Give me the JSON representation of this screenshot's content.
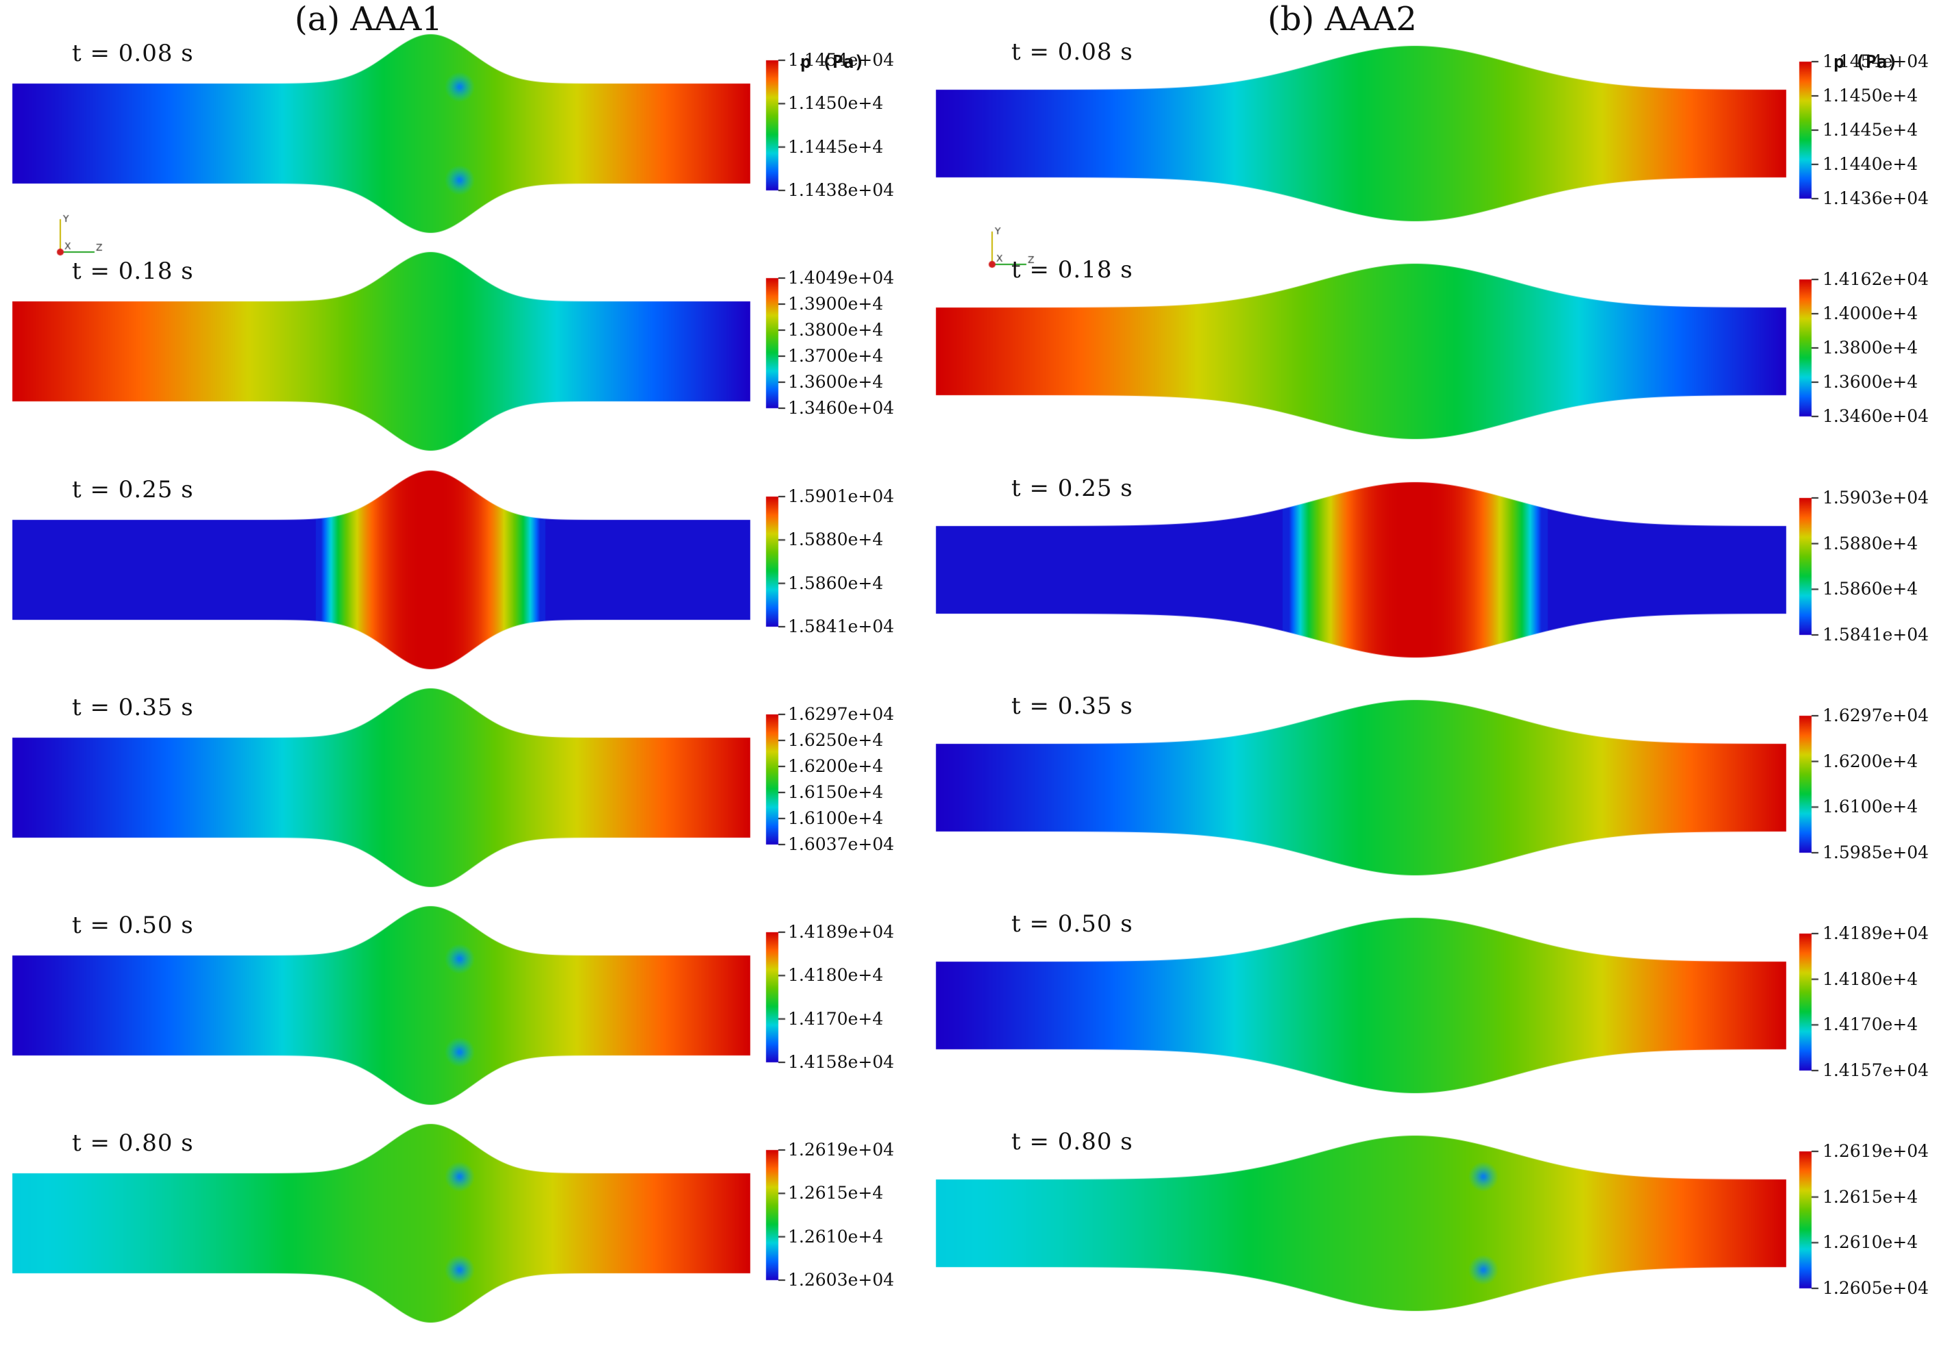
{
  "panels": [
    {
      "title": "(a) AAA1",
      "colorbar_title": "p (Pa)",
      "rows": [
        {
          "time": "t = 0.08 s",
          "ticks": [
            "1.1454e+04",
            "1.1450e+4",
            "1.1445e+4",
            "1.1438e+04"
          ],
          "field": "inlet-low",
          "vortices": true
        },
        {
          "time": "t = 0.18 s",
          "ticks": [
            "1.4049e+04",
            "1.3900e+4",
            "1.3800e+4",
            "1.3700e+4",
            "1.3600e+4",
            "1.3460e+04"
          ],
          "field": "inlet-high",
          "vortices": false
        },
        {
          "time": "t = 0.25 s",
          "ticks": [
            "1.5901e+04",
            "1.5880e+4",
            "1.5860e+4",
            "1.5841e+04"
          ],
          "field": "sac-high",
          "vortices": false
        },
        {
          "time": "t = 0.35 s",
          "ticks": [
            "1.6297e+04",
            "1.6250e+4",
            "1.6200e+4",
            "1.6150e+4",
            "1.6100e+4",
            "1.6037e+04"
          ],
          "field": "inlet-low",
          "vortices": false
        },
        {
          "time": "t = 0.50 s",
          "ticks": [
            "1.4189e+04",
            "1.4180e+4",
            "1.4170e+4",
            "1.4158e+04"
          ],
          "field": "inlet-low",
          "vortices": true
        },
        {
          "time": "t = 0.80 s",
          "ticks": [
            "1.2619e+04",
            "1.2615e+4",
            "1.2610e+4",
            "1.2603e+04"
          ],
          "field": "inlet-mid",
          "vortices": true
        }
      ]
    },
    {
      "title": "(b) AAA2",
      "colorbar_title": "p (Pa)",
      "rows": [
        {
          "time": "t = 0.08 s",
          "ticks": [
            "1.1454e+04",
            "1.1450e+4",
            "1.1445e+4",
            "1.1440e+4",
            "1.1436e+04"
          ],
          "field": "inlet-low",
          "vortices": false
        },
        {
          "time": "t = 0.18 s",
          "ticks": [
            "1.4162e+04",
            "1.4000e+4",
            "1.3800e+4",
            "1.3600e+4",
            "1.3460e+04"
          ],
          "field": "inlet-high",
          "vortices": false
        },
        {
          "time": "t = 0.25 s",
          "ticks": [
            "1.5903e+04",
            "1.5880e+4",
            "1.5860e+4",
            "1.5841e+04"
          ],
          "field": "sac-high",
          "vortices": false
        },
        {
          "time": "t = 0.35 s",
          "ticks": [
            "1.6297e+04",
            "1.6200e+4",
            "1.6100e+4",
            "1.5985e+04"
          ],
          "field": "inlet-low",
          "vortices": false
        },
        {
          "time": "t = 0.50 s",
          "ticks": [
            "1.4189e+04",
            "1.4180e+4",
            "1.4170e+4",
            "1.4157e+04"
          ],
          "field": "inlet-low",
          "vortices": false
        },
        {
          "time": "t = 0.80 s",
          "ticks": [
            "1.2619e+04",
            "1.2615e+4",
            "1.2610e+4",
            "1.2605e+04"
          ],
          "field": "inlet-mid",
          "vortices": true
        }
      ]
    }
  ],
  "colormap": [
    "#1a00c8",
    "#0064ff",
    "#00d2dc",
    "#00c83c",
    "#64c800",
    "#d2d200",
    "#ff6400",
    "#d20000"
  ],
  "axes_triad": [
    "Y",
    "Z",
    "X"
  ]
}
